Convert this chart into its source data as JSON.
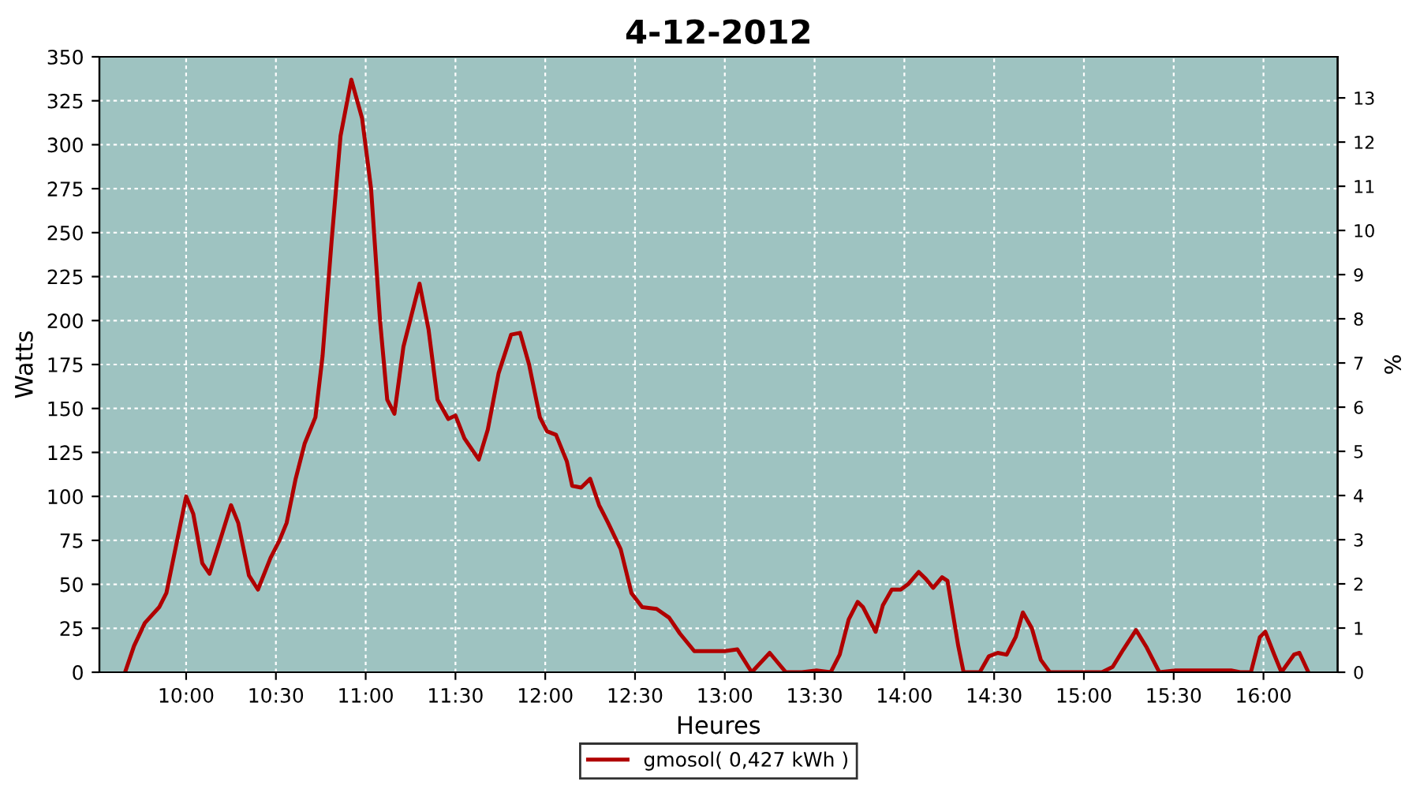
{
  "chart_data": {
    "type": "line",
    "title": "4-12-2012",
    "xlabel": "Heures",
    "ylabel": "Watts",
    "y2label": "%",
    "series": [
      {
        "name": "gmosol( 0,427 kWh )",
        "color": "#b00000",
        "x": [
          9.66,
          9.71,
          9.77,
          9.85,
          9.89,
          9.95,
          10.0,
          10.04,
          10.09,
          10.13,
          10.18,
          10.25,
          10.29,
          10.35,
          10.4,
          10.47,
          10.52,
          10.56,
          10.61,
          10.66,
          10.72,
          10.76,
          10.81,
          10.86,
          10.92,
          10.98,
          11.03,
          11.08,
          11.12,
          11.16,
          11.21,
          11.3,
          11.35,
          11.4,
          11.46,
          11.5,
          11.55,
          11.63,
          11.68,
          11.74,
          11.81,
          11.86,
          11.91,
          11.97,
          12.01,
          12.06,
          12.12,
          12.15,
          12.2,
          12.25,
          12.3,
          12.35,
          12.42,
          12.48,
          12.54,
          12.62,
          12.69,
          12.75,
          12.83,
          13.0,
          13.07,
          13.15,
          13.25,
          13.34,
          13.43,
          13.51,
          13.59,
          13.64,
          13.69,
          13.74,
          13.77,
          13.84,
          13.88,
          13.93,
          13.98,
          14.02,
          14.08,
          14.12,
          14.16,
          14.21,
          14.24,
          14.3,
          14.33,
          14.42,
          14.47,
          14.52,
          14.57,
          14.62,
          14.66,
          14.71,
          14.76,
          14.81,
          15.1,
          15.16,
          15.22,
          15.29,
          15.35,
          15.42,
          15.51,
          15.82,
          15.87,
          15.93,
          15.98,
          16.01,
          16.06,
          16.1,
          16.17,
          16.2,
          16.25
        ],
        "values": [
          0,
          15,
          28,
          37,
          45,
          75,
          100,
          90,
          62,
          56,
          72,
          95,
          85,
          55,
          47,
          65,
          75,
          85,
          110,
          130,
          145,
          180,
          245,
          305,
          337,
          315,
          275,
          200,
          155,
          147,
          185,
          221,
          195,
          155,
          144,
          146,
          133,
          121,
          138,
          170,
          192,
          193,
          175,
          145,
          137,
          135,
          120,
          106,
          105,
          110,
          95,
          85,
          70,
          45,
          37,
          36,
          31,
          22,
          12,
          12,
          13,
          0,
          11,
          0,
          0,
          1,
          0,
          10,
          30,
          40,
          37,
          23,
          38,
          47,
          47,
          50,
          57,
          53,
          48,
          54,
          52,
          15,
          0,
          0,
          9,
          11,
          10,
          20,
          34,
          25,
          7,
          0,
          0,
          3,
          13,
          24,
          14,
          0,
          1,
          1,
          0,
          0,
          20,
          23,
          10,
          0,
          10,
          11,
          0
        ]
      }
    ],
    "xlim": [
      9.517,
      16.413
    ],
    "xticks": [
      {
        "value": 10,
        "label": "10:00"
      },
      {
        "value": 10.5,
        "label": "10:30"
      },
      {
        "value": 11,
        "label": "11:00"
      },
      {
        "value": 11.5,
        "label": "11:30"
      },
      {
        "value": 12,
        "label": "12:00"
      },
      {
        "value": 12.5,
        "label": "12:30"
      },
      {
        "value": 13,
        "label": "13:00"
      },
      {
        "value": 13.5,
        "label": "13:30"
      },
      {
        "value": 14,
        "label": "14:00"
      },
      {
        "value": 14.5,
        "label": "14:30"
      },
      {
        "value": 15,
        "label": "15:00"
      },
      {
        "value": 15.5,
        "label": "15:30"
      },
      {
        "value": 16,
        "label": "16:00"
      }
    ],
    "ylim": [
      0,
      350
    ],
    "yticks": [
      0,
      25,
      50,
      75,
      100,
      125,
      150,
      175,
      200,
      225,
      250,
      275,
      300,
      325,
      350
    ],
    "y2lim": [
      0,
      13.93
    ],
    "y2ticks": [
      0,
      1,
      2,
      3,
      4,
      5,
      6,
      7,
      8,
      9,
      10,
      11,
      12,
      13
    ],
    "grid": true,
    "legend": "bottom",
    "marker": "none",
    "line_style": "solid"
  }
}
